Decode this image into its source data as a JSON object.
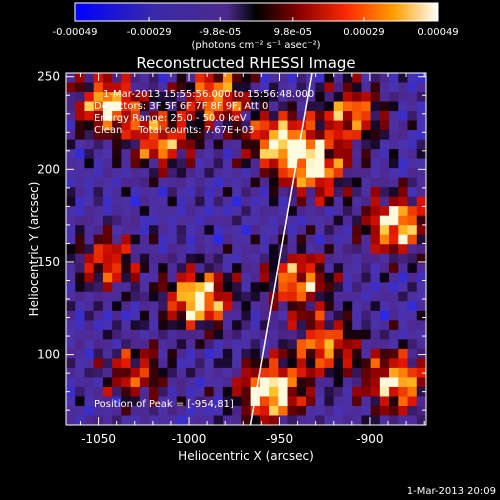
{
  "colorbar": {
    "tick_labels": [
      "-0.00049",
      "-0.00029",
      "-9.8e-05",
      "9.8e-05",
      "0.00029",
      "0.00049"
    ],
    "tick_values": [
      -0.00049,
      -0.00029,
      -9.8e-05,
      9.8e-05,
      0.00029,
      0.00049
    ],
    "range": [
      -0.00049,
      0.00049
    ],
    "units_text": "(photons cm⁻² s⁻¹ asec⁻²)"
  },
  "colors": {
    "background": "#000000",
    "foreground": "#ffffff",
    "limb_line": "#ffffff"
  },
  "chart_data": {
    "type": "heatmap",
    "title": "Reconstructed RHESSI Image",
    "xlabel": "Heliocentric X (arcsec)",
    "ylabel": "Heliocentric Y (arcsec)",
    "xlim": [
      -1068,
      -869
    ],
    "ylim": [
      62,
      252
    ],
    "xticks": [
      -1050,
      -1000,
      -950,
      -900
    ],
    "xtick_labels": [
      "-1050",
      "-1000",
      "-950",
      "-900"
    ],
    "yticks": [
      100,
      150,
      200,
      250
    ],
    "ytick_labels": [
      "100",
      "150",
      "200",
      "250"
    ],
    "annotations": [
      "1-Mar-2013 15:55:56.000 to 15:56:48.000",
      "Detectors: 3F 5F 6F 7F 8F 9F, Att 0",
      "Energy Range: 25.0 - 50.0 keV",
      "Clean     Total counts: 7.67E+03"
    ],
    "peak_label": "Position of Peak = [-954,81]",
    "peak_position": [
      -954,
      81
    ],
    "limb_line": [
      [
        -966,
        62
      ],
      [
        -932,
        252
      ]
    ],
    "grid": false,
    "grid_cols": 39,
    "grid_rows": 37,
    "intensity_grid_note": "approximate 2D field reconstructed procedurally; hot regions listed below",
    "hot_regions": [
      {
        "x": -1045,
        "y": 235,
        "intensity": 0.85
      },
      {
        "x": -1015,
        "y": 215,
        "intensity": 0.7
      },
      {
        "x": -985,
        "y": 240,
        "intensity": 0.75
      },
      {
        "x": -995,
        "y": 130,
        "intensity": 0.95
      },
      {
        "x": -1045,
        "y": 150,
        "intensity": 0.6
      },
      {
        "x": -950,
        "y": 215,
        "intensity": 0.85
      },
      {
        "x": -930,
        "y": 200,
        "intensity": 0.8
      },
      {
        "x": -910,
        "y": 230,
        "intensity": 0.7
      },
      {
        "x": -885,
        "y": 170,
        "intensity": 0.9
      },
      {
        "x": -940,
        "y": 140,
        "intensity": 0.75
      },
      {
        "x": -925,
        "y": 105,
        "intensity": 0.7
      },
      {
        "x": -955,
        "y": 80,
        "intensity": 1.0
      },
      {
        "x": -885,
        "y": 85,
        "intensity": 0.85
      },
      {
        "x": -1030,
        "y": 90,
        "intensity": 0.55
      }
    ]
  },
  "footer": {
    "timestamp": "1-Mar-2013 20:09"
  }
}
